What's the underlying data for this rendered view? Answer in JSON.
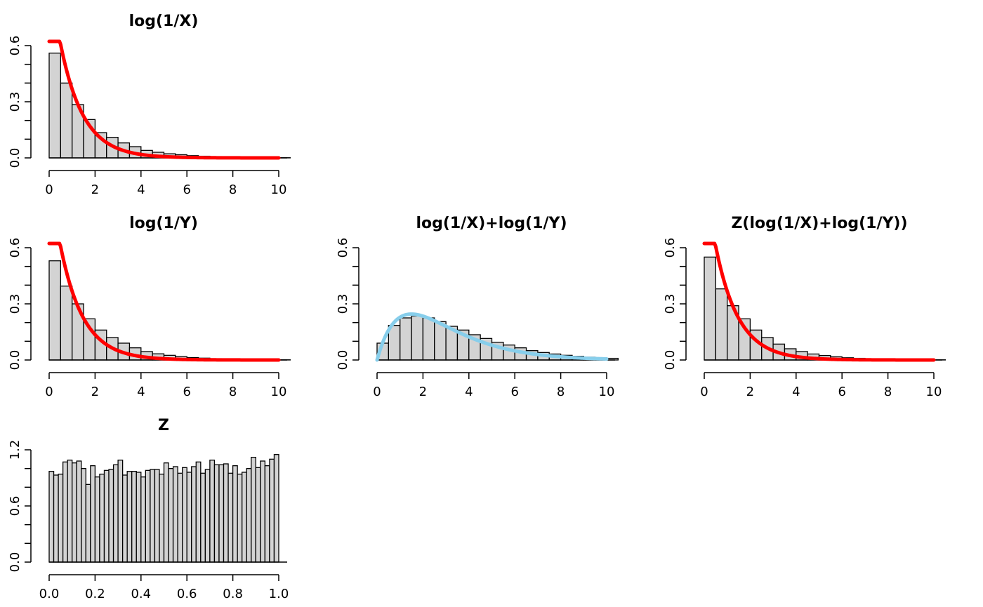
{
  "figure": {
    "background": "#ffffff",
    "bar_fill": "#d3d3d3",
    "bar_stroke": "#000000"
  },
  "chart_data": [
    {
      "id": "p1",
      "type": "bar",
      "title": "log(1/X)",
      "xlabel": "",
      "ylabel": "",
      "xlim": [
        0,
        10
      ],
      "ylim": [
        0,
        0.6
      ],
      "xticks": [
        "0",
        "2",
        "4",
        "6",
        "8",
        "10"
      ],
      "yticks": [
        "0.0",
        "0.3",
        "0.6"
      ],
      "bin_width": 0.5,
      "values": [
        0.56,
        0.4,
        0.285,
        0.205,
        0.135,
        0.11,
        0.08,
        0.06,
        0.04,
        0.03,
        0.022,
        0.017,
        0.012,
        0.009,
        0.007,
        0.005,
        0.004,
        0.003,
        0.002,
        0.0015,
        0.001
      ],
      "curve": {
        "name": "",
        "color": "#ff0000",
        "kind": "exp",
        "rate": 1,
        "x_range": [
          0,
          10
        ]
      }
    },
    {
      "id": "p2",
      "type": "bar",
      "title": "log(1/Y)",
      "xlabel": "",
      "ylabel": "",
      "xlim": [
        0,
        10
      ],
      "ylim": [
        0,
        0.6
      ],
      "xticks": [
        "0",
        "2",
        "4",
        "6",
        "8",
        "10"
      ],
      "yticks": [
        "0.0",
        "0.3",
        "0.6"
      ],
      "bin_width": 0.5,
      "values": [
        0.53,
        0.395,
        0.3,
        0.22,
        0.16,
        0.12,
        0.09,
        0.065,
        0.045,
        0.033,
        0.025,
        0.018,
        0.013,
        0.01,
        0.007,
        0.005,
        0.004,
        0.003,
        0.002,
        0.0015,
        0.001
      ],
      "curve": {
        "name": "",
        "color": "#ff0000",
        "kind": "exp",
        "rate": 1,
        "x_range": [
          0,
          10
        ]
      }
    },
    {
      "id": "p3",
      "type": "bar",
      "title": "log(1/X)+log(1/Y)",
      "xlabel": "",
      "ylabel": "",
      "xlim": [
        0,
        10
      ],
      "ylim": [
        0,
        0.6
      ],
      "xticks": [
        "0",
        "2",
        "4",
        "6",
        "8",
        "10"
      ],
      "yticks": [
        "0.0",
        "0.3",
        "0.6"
      ],
      "bin_width": 0.5,
      "values": [
        0.09,
        0.185,
        0.225,
        0.235,
        0.225,
        0.205,
        0.18,
        0.16,
        0.135,
        0.115,
        0.095,
        0.08,
        0.065,
        0.05,
        0.04,
        0.032,
        0.025,
        0.02,
        0.015,
        0.012,
        0.009
      ],
      "curve": {
        "name": "",
        "color": "#87ceeb",
        "kind": "gamma2",
        "rate": 1,
        "x_range": [
          0,
          10
        ]
      }
    },
    {
      "id": "p4",
      "type": "bar",
      "title": "Z(log(1/X)+log(1/Y))",
      "xlabel": "",
      "ylabel": "",
      "xlim": [
        0,
        10
      ],
      "ylim": [
        0,
        0.6
      ],
      "xticks": [
        "0",
        "2",
        "4",
        "6",
        "8",
        "10"
      ],
      "yticks": [
        "0.0",
        "0.3",
        "0.6"
      ],
      "bin_width": 0.5,
      "values": [
        0.55,
        0.38,
        0.29,
        0.22,
        0.16,
        0.12,
        0.085,
        0.06,
        0.045,
        0.032,
        0.024,
        0.017,
        0.012,
        0.009,
        0.006,
        0.005,
        0.004,
        0.003,
        0.002,
        0.0015,
        0.001
      ],
      "curve": {
        "name": "",
        "color": "#ff0000",
        "kind": "exp",
        "rate": 1,
        "x_range": [
          0,
          10
        ]
      }
    },
    {
      "id": "p5",
      "type": "bar",
      "title": "Z",
      "xlabel": "",
      "ylabel": "",
      "xlim": [
        0,
        1
      ],
      "ylim": [
        0,
        1.2
      ],
      "xticks": [
        "0.0",
        "0.2",
        "0.4",
        "0.6",
        "0.8",
        "1.0"
      ],
      "yticks": [
        "0.0",
        "0.6",
        "1.2"
      ],
      "bin_width": 0.02,
      "values": [
        0.97,
        0.93,
        0.94,
        1.07,
        1.09,
        1.06,
        1.08,
        1.0,
        0.83,
        1.03,
        0.91,
        0.94,
        0.98,
        0.99,
        1.04,
        1.09,
        0.93,
        0.97,
        0.97,
        0.96,
        0.91,
        0.98,
        0.99,
        0.99,
        0.94,
        1.06,
        1.0,
        1.02,
        0.95,
        1.01,
        0.96,
        1.02,
        1.07,
        0.95,
        0.99,
        1.09,
        1.04,
        1.04,
        1.05,
        0.95,
        1.03,
        0.94,
        0.96,
        1.0,
        1.12,
        1.01,
        1.08,
        1.03,
        1.1,
        1.15
      ]
    }
  ]
}
